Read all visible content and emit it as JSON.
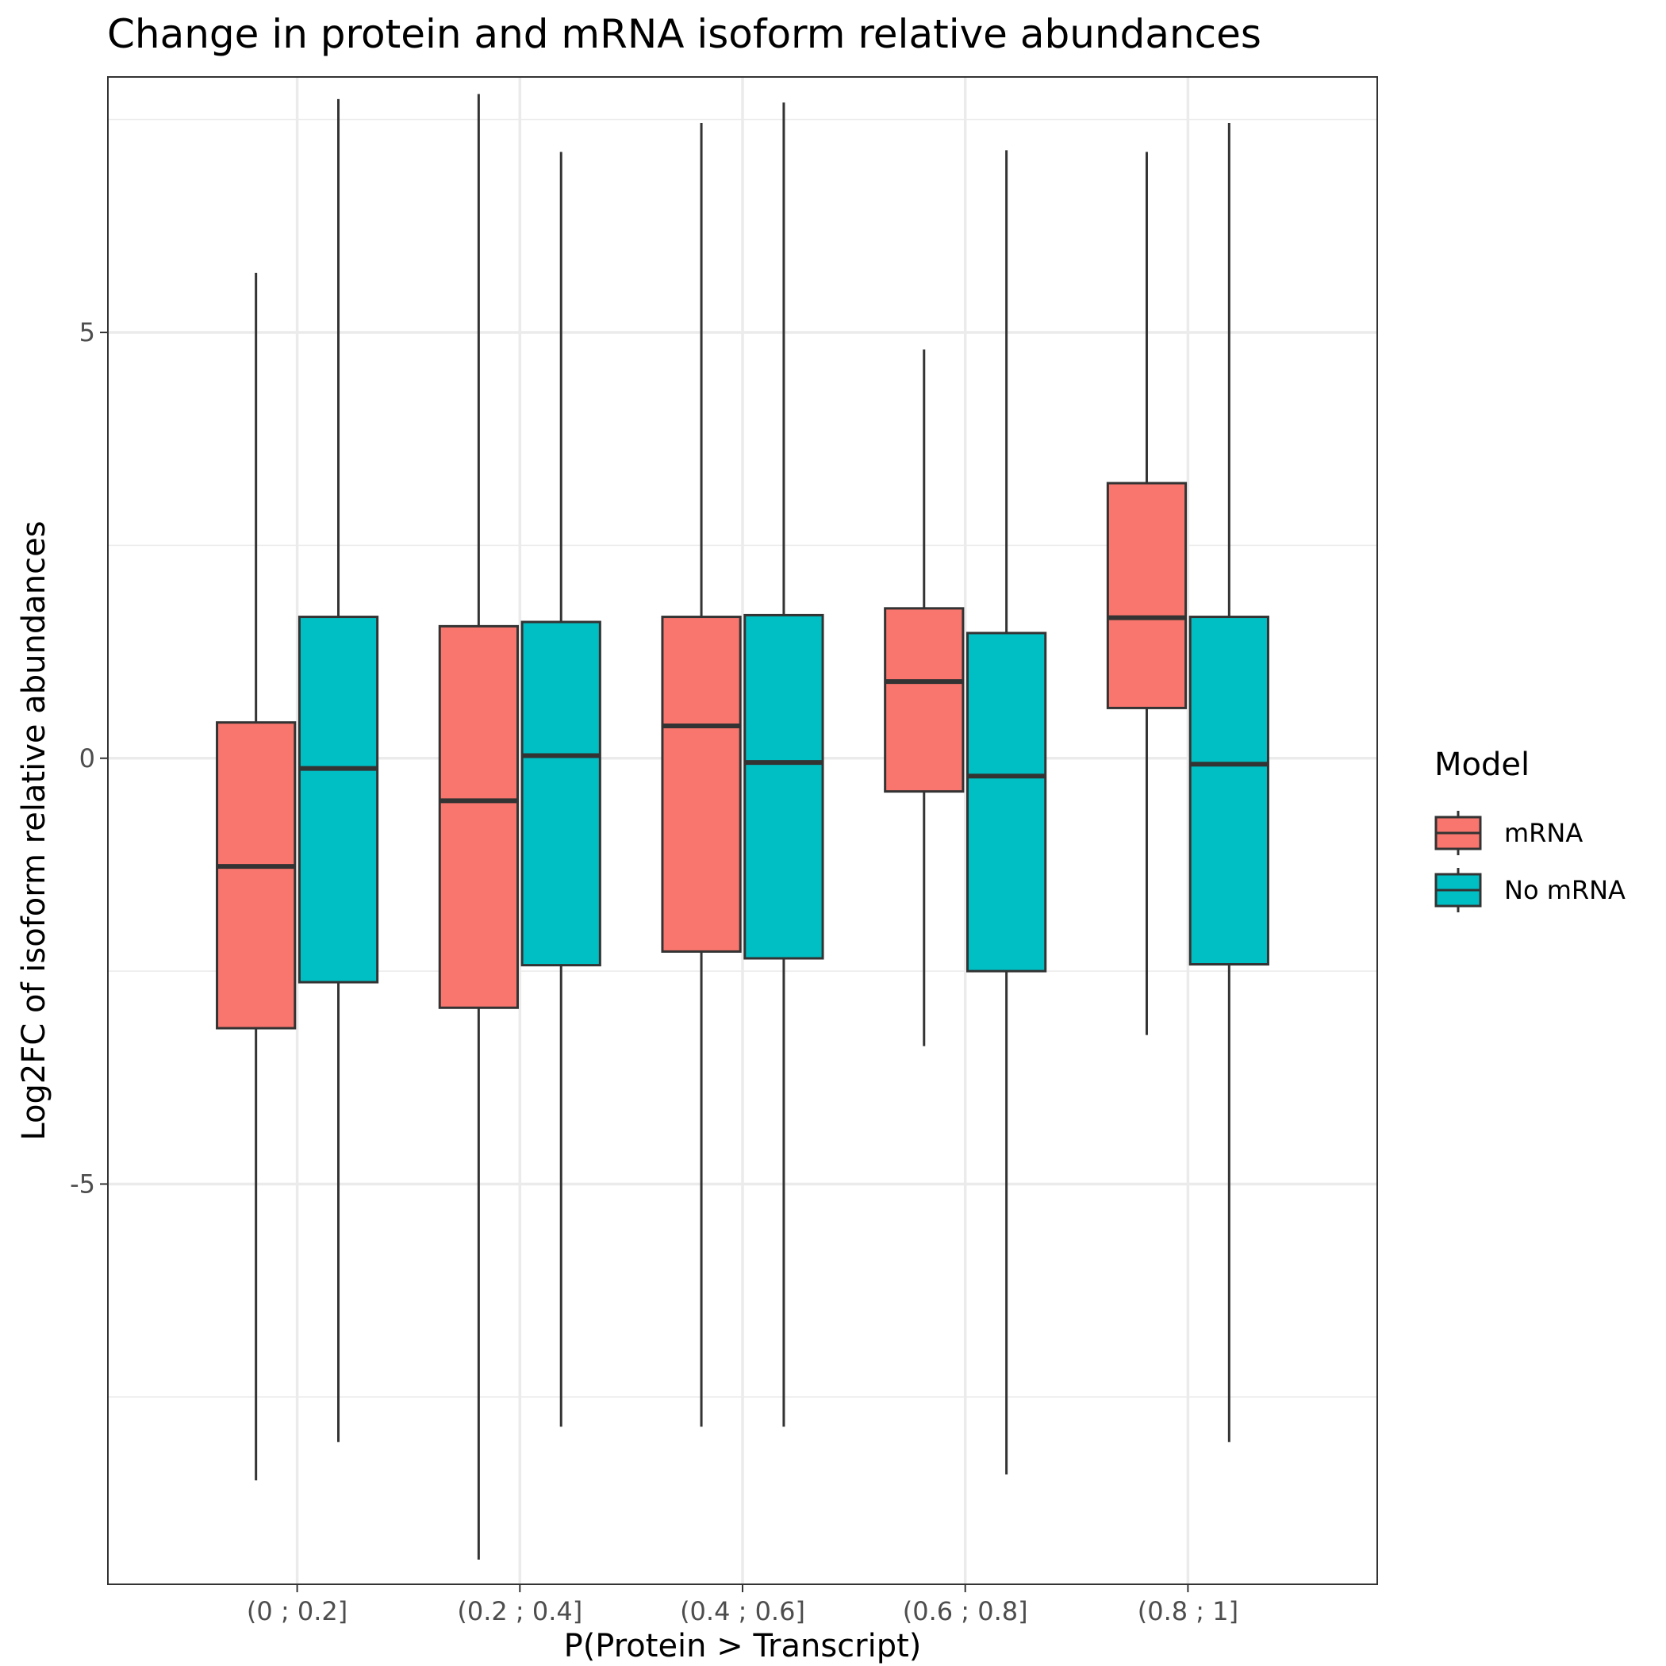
{
  "chart_data": {
    "type": "boxplot",
    "title": "Change in protein and mRNA isoform relative abundances",
    "xlabel": "P(Protein > Transcript)",
    "ylabel": "Log2FC of isoform relative abundances",
    "categories": [
      "(0 ; 0.2]",
      "(0.2 ; 0.4]",
      "(0.4 ; 0.6]",
      "(0.6 ; 0.8]",
      "(0.8 ; 1]"
    ],
    "ylim": [
      -9.7,
      8.0
    ],
    "yticks": [
      5,
      0,
      -5
    ],
    "ytick_labels": [
      "5",
      "0",
      "-5"
    ],
    "grid": true,
    "legend": {
      "title": "Model",
      "position": "right",
      "entries": [
        "mRNA",
        "No mRNA"
      ]
    },
    "series": [
      {
        "name": "mRNA",
        "color": "#F8766D",
        "boxes": [
          {
            "whisker_low": -8.48,
            "q1": -3.17,
            "median": -1.27,
            "q3": 0.42,
            "whisker_high": 5.7
          },
          {
            "whisker_low": -9.41,
            "q1": -2.93,
            "median": -0.5,
            "q3": 1.55,
            "whisker_high": 7.8
          },
          {
            "whisker_low": -7.85,
            "q1": -2.27,
            "median": 0.38,
            "q3": 1.66,
            "whisker_high": 7.46
          },
          {
            "whisker_low": -3.38,
            "q1": -0.39,
            "median": 0.9,
            "q3": 1.76,
            "whisker_high": 4.8
          },
          {
            "whisker_low": -3.25,
            "q1": 0.59,
            "median": 1.65,
            "q3": 3.23,
            "whisker_high": 7.12
          }
        ]
      },
      {
        "name": "No mRNA",
        "color": "#00BFC4",
        "boxes": [
          {
            "whisker_low": -8.03,
            "q1": -2.63,
            "median": -0.12,
            "q3": 1.66,
            "whisker_high": 7.74
          },
          {
            "whisker_low": -7.85,
            "q1": -2.43,
            "median": 0.03,
            "q3": 1.6,
            "whisker_high": 7.12
          },
          {
            "whisker_low": -7.85,
            "q1": -2.35,
            "median": -0.05,
            "q3": 1.68,
            "whisker_high": 7.7
          },
          {
            "whisker_low": -8.41,
            "q1": -2.5,
            "median": -0.21,
            "q3": 1.47,
            "whisker_high": 7.14
          },
          {
            "whisker_low": -8.03,
            "q1": -2.42,
            "median": -0.07,
            "q3": 1.66,
            "whisker_high": 7.46
          }
        ]
      }
    ]
  }
}
